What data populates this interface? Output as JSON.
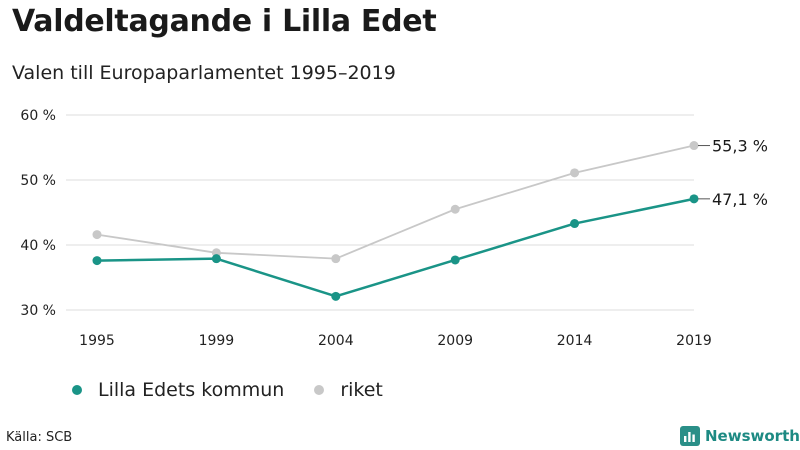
{
  "title": "Valdeltagande i Lilla Edet",
  "subtitle": "Valen till Europaparlamentet 1995–2019",
  "source": "Källa: SCB",
  "brand": "Newsworthy",
  "colors": {
    "kommun": "#1a9487",
    "riket": "#c8c8c8",
    "grid": "#dcdcdc",
    "brand": "#2a8f88"
  },
  "chart_data": {
    "type": "line",
    "title": "Valdeltagande i Lilla Edet",
    "subtitle": "Valen till Europaparlamentet 1995–2019",
    "categories": [
      "1995",
      "1999",
      "2004",
      "2009",
      "2014",
      "2019"
    ],
    "y_ticks": [
      "30 %",
      "40 %",
      "50 %",
      "60 %"
    ],
    "ylim": [
      30,
      60
    ],
    "grid": true,
    "legend_position": "bottom-left",
    "series": [
      {
        "name": "Lilla Edets kommun",
        "values": [
          37.6,
          37.9,
          32.1,
          37.7,
          43.3,
          47.1
        ],
        "end_label": "47,1 %"
      },
      {
        "name": "riket",
        "values": [
          41.6,
          38.8,
          37.9,
          45.5,
          51.1,
          55.3
        ],
        "end_label": "55,3 %"
      }
    ]
  }
}
